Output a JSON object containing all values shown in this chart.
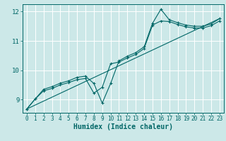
{
  "background_color": "#cce8e8",
  "grid_color": "#ffffff",
  "line_color": "#006666",
  "xlabel": "Humidex (Indice chaleur)",
  "xlim": [
    -0.5,
    23.5
  ],
  "ylim": [
    8.55,
    12.25
  ],
  "yticks": [
    9,
    10,
    11,
    12
  ],
  "xticks": [
    0,
    1,
    2,
    3,
    4,
    5,
    6,
    7,
    8,
    9,
    10,
    11,
    12,
    13,
    14,
    15,
    16,
    17,
    18,
    19,
    20,
    21,
    22,
    23
  ],
  "series1_x": [
    0,
    1,
    2,
    3,
    4,
    5,
    6,
    7,
    8,
    9,
    10,
    11,
    12,
    13,
    14,
    15,
    16,
    17,
    18,
    19,
    20,
    21,
    22,
    23
  ],
  "series1_y": [
    8.68,
    9.02,
    9.35,
    9.44,
    9.56,
    9.64,
    9.76,
    9.8,
    9.55,
    8.88,
    9.55,
    10.32,
    10.48,
    10.6,
    10.8,
    11.6,
    12.08,
    11.72,
    11.62,
    11.54,
    11.5,
    11.5,
    11.58,
    11.76
  ],
  "series2_x": [
    0,
    1,
    2,
    3,
    4,
    5,
    6,
    7,
    8,
    9,
    10,
    11,
    12,
    13,
    14,
    15,
    16,
    17,
    18,
    19,
    20,
    21,
    22,
    23
  ],
  "series2_y": [
    8.68,
    9.02,
    9.3,
    9.38,
    9.5,
    9.58,
    9.68,
    9.72,
    9.22,
    9.42,
    10.22,
    10.28,
    10.42,
    10.54,
    10.74,
    11.54,
    11.68,
    11.66,
    11.56,
    11.48,
    11.44,
    11.44,
    11.52,
    11.68
  ],
  "series3_x": [
    0,
    23
  ],
  "series3_y": [
    8.68,
    11.76
  ]
}
